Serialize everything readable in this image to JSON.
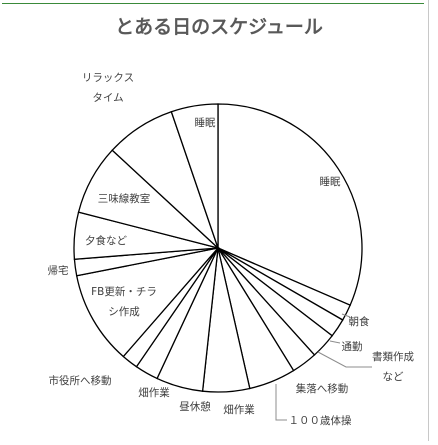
{
  "chart_data": {
    "type": "pie",
    "title": "とある日のスケジュール",
    "start_angle_deg": 0,
    "direction": "clockwise",
    "slices": [
      {
        "label": "睡眠",
        "value": 6.0
      },
      {
        "label": "朝食",
        "value": 0.35
      },
      {
        "label": "通勤",
        "value": 0.4
      },
      {
        "label": "書類作成など",
        "value": 0.55
      },
      {
        "label": "集落へ移動",
        "value": 0.55
      },
      {
        "label": "１００歳体操",
        "value": 1.0
      },
      {
        "label": "畑作業",
        "value": 1.0
      },
      {
        "label": "昼休憩",
        "value": 1.0
      },
      {
        "label": "畑作業",
        "value": 0.5
      },
      {
        "label": "市役所へ移動",
        "value": 0.35
      },
      {
        "label": "FB更新・チラシ作成",
        "value": 2.0
      },
      {
        "label": "帰宅",
        "value": 0.35
      },
      {
        "label": "夕食など",
        "value": 1.0
      },
      {
        "label": "三味線教室",
        "value": 1.5
      },
      {
        "label": "リラックスタイム",
        "value": 1.5
      },
      {
        "label": "睡眠",
        "value": 1.0
      }
    ],
    "legend": "none",
    "slice_fill": "#ffffff",
    "slice_stroke": "#000000"
  }
}
